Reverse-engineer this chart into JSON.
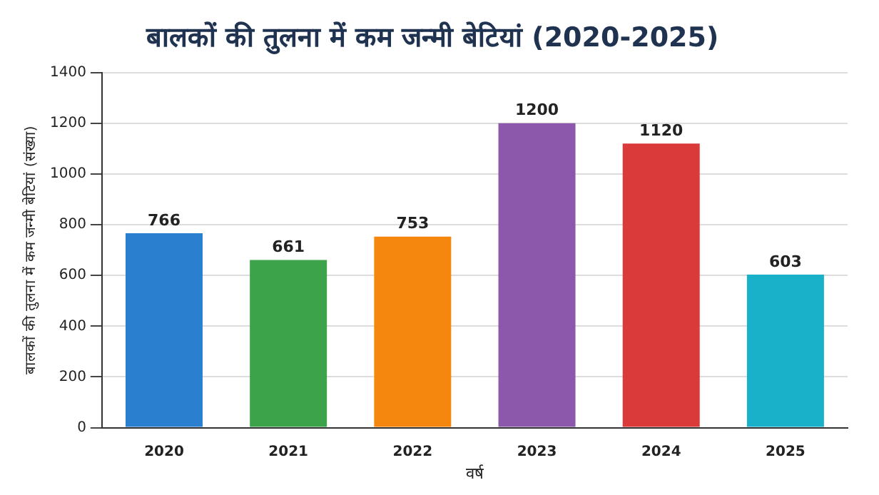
{
  "chart_data": {
    "type": "bar",
    "title": "बालकों की तुलना में कम जन्मी बेटियां (2020-2025)",
    "xlabel": "वर्ष",
    "ylabel": "बालकों की तुलना में कम जन्मी बेटियां (संख्या)",
    "categories": [
      "2020",
      "2021",
      "2022",
      "2023",
      "2024",
      "2025"
    ],
    "values": [
      766,
      661,
      753,
      1200,
      1120,
      603
    ],
    "colors": [
      "#2b7fcf",
      "#3da34a",
      "#f5870f",
      "#8c58ac",
      "#db3a3a",
      "#19b1c9"
    ],
    "ylim": [
      0,
      1400
    ],
    "yticks": [
      0,
      200,
      400,
      600,
      800,
      1000,
      1200,
      1400
    ],
    "grid": "y",
    "data_labels": true,
    "legend": false
  }
}
